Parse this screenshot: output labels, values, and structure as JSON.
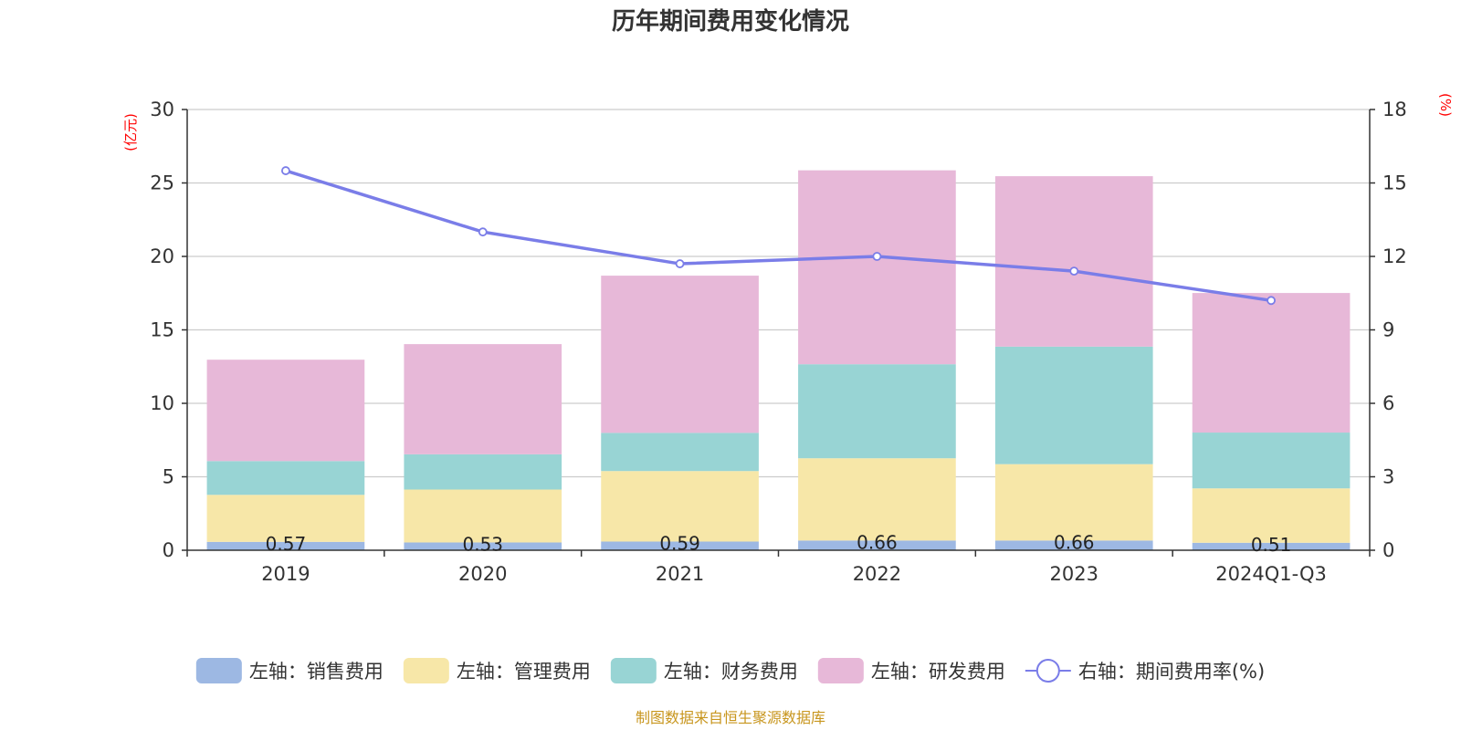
{
  "chart_data": {
    "type": "bar",
    "title": "历年期间费用变化情况",
    "categories": [
      "2019",
      "2020",
      "2021",
      "2022",
      "2023",
      "2024Q1-Q3"
    ],
    "series": [
      {
        "name": "左轴：销售费用",
        "axis": "left",
        "color": "#9db8e3",
        "values": [
          0.57,
          0.53,
          0.59,
          0.66,
          0.66,
          0.51
        ],
        "labels": [
          "0.57",
          "0.53",
          "0.59",
          "0.66",
          "0.66",
          "0.51"
        ]
      },
      {
        "name": "左轴：管理费用",
        "axis": "left",
        "color": "#f7e7a8",
        "values": [
          3.2,
          3.6,
          4.8,
          5.6,
          5.2,
          3.7
        ]
      },
      {
        "name": "左轴：财务费用",
        "axis": "left",
        "color": "#98d4d4",
        "values": [
          2.3,
          2.4,
          2.6,
          6.4,
          8.0,
          3.8
        ]
      },
      {
        "name": "左轴：研发费用",
        "axis": "left",
        "color": "#e7b8d8",
        "values": [
          6.9,
          7.5,
          10.7,
          13.2,
          11.6,
          9.5
        ]
      }
    ],
    "line": {
      "name": "右轴：期间费用率(%)",
      "axis": "right",
      "color": "#7a7de8",
      "values": [
        15.5,
        13.0,
        11.7,
        12.0,
        11.4,
        10.2
      ]
    },
    "y_left": {
      "label": "(亿元)",
      "min": 0,
      "max": 30,
      "ticks": [
        0,
        5,
        10,
        15,
        20,
        25,
        30
      ]
    },
    "y_right": {
      "label": "(%)",
      "min": 0,
      "max": 18,
      "ticks": [
        0,
        3,
        6,
        9,
        12,
        15,
        18
      ]
    },
    "legend_position": "bottom",
    "grid": true
  },
  "source": "制图数据来自恒生聚源数据库"
}
